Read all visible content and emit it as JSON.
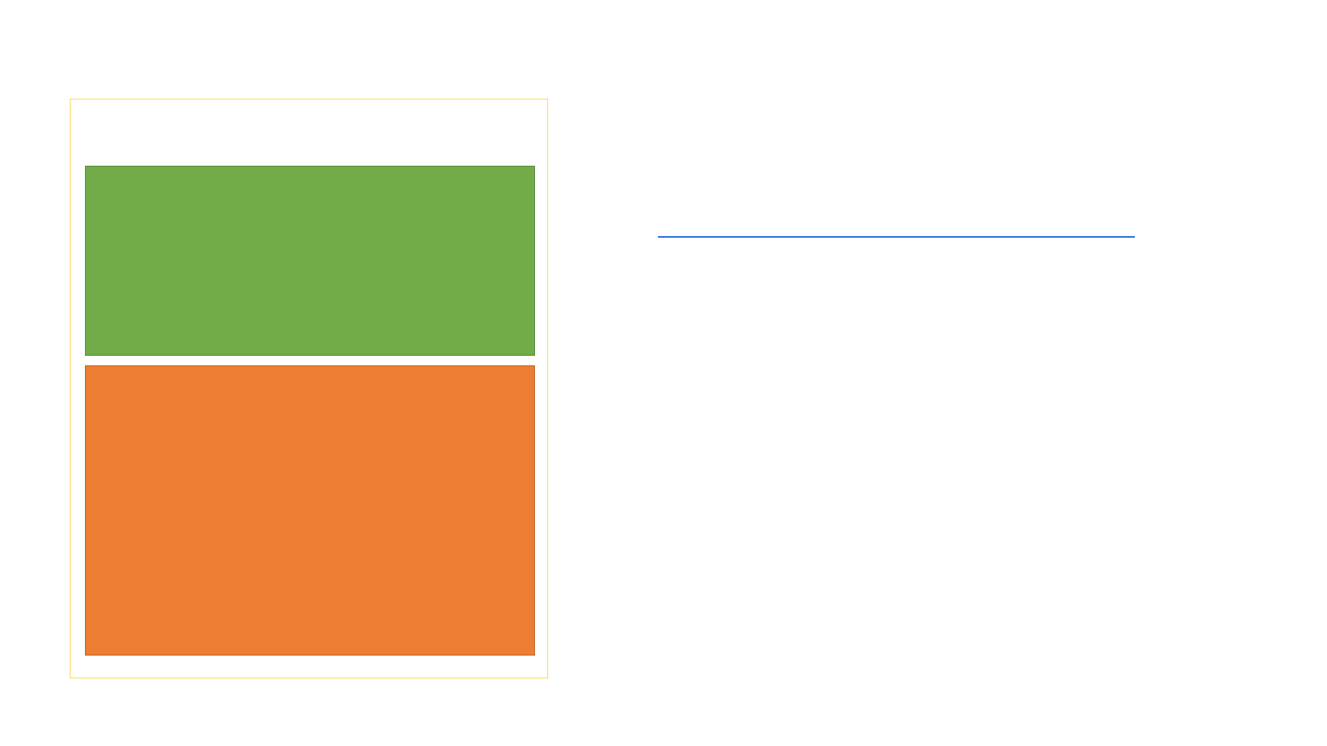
{
  "colors": {
    "background": "#ffffff",
    "frame_border": "#ffd32f",
    "green_fill": "#72ac48",
    "green_border": "#4f7b31",
    "orange_fill": "#ed7d31",
    "orange_border": "#ae5a22",
    "rule": "#0b5bd7"
  }
}
